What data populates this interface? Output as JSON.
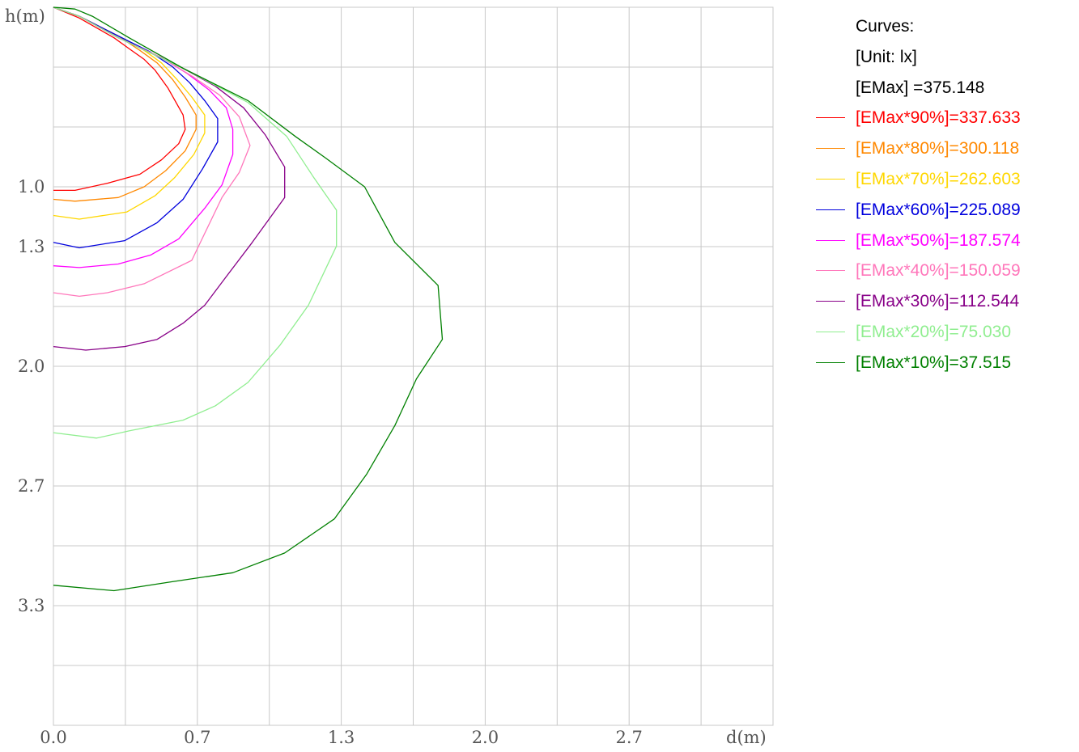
{
  "chart_data": {
    "type": "line",
    "xlabel": "d(m)",
    "ylabel": "h(m)",
    "xlim": [
      0,
      3.33
    ],
    "ylim": [
      0,
      4.0
    ],
    "y_inverted": true,
    "grid": true,
    "legend_position": "right",
    "x_ticks": [
      {
        "v": 0.0,
        "t": "0.0"
      },
      {
        "v": 0.666,
        "t": "0.7"
      },
      {
        "v": 1.332,
        "t": "1.3"
      },
      {
        "v": 1.998,
        "t": "2.0"
      },
      {
        "v": 2.664,
        "t": "2.7"
      }
    ],
    "y_ticks": [
      {
        "v": 1.0,
        "t": "1.0"
      },
      {
        "v": 1.333,
        "t": "1.3"
      },
      {
        "v": 2.0,
        "t": "2.0"
      },
      {
        "v": 2.667,
        "t": "2.7"
      },
      {
        "v": 3.333,
        "t": "3.3"
      }
    ],
    "legend_header": [
      "Curves:",
      "[Unit: lx]",
      "[EMax]   =375.148"
    ],
    "series": [
      {
        "name": "[EMax*90%]=337.633",
        "color": "#ff0000",
        "x": [
          0,
          0.04,
          0.12,
          0.28,
          0.35,
          0.42,
          0.47,
          0.53,
          0.6,
          0.61,
          0.58,
          0.5,
          0.4,
          0.25,
          0.1,
          0
        ],
        "y": [
          0,
          0.02,
          0.06,
          0.17,
          0.23,
          0.29,
          0.35,
          0.45,
          0.6,
          0.68,
          0.76,
          0.85,
          0.93,
          0.98,
          1.02,
          1.02
        ]
      },
      {
        "name": "[EMax*80%]=300.118",
        "color": "#ff8800",
        "x": [
          0,
          0.12,
          0.3,
          0.4,
          0.48,
          0.55,
          0.61,
          0.66,
          0.66,
          0.61,
          0.52,
          0.42,
          0.3,
          0.1,
          0
        ],
        "y": [
          0,
          0.05,
          0.16,
          0.24,
          0.31,
          0.4,
          0.5,
          0.6,
          0.68,
          0.8,
          0.91,
          1.0,
          1.06,
          1.08,
          1.07
        ]
      },
      {
        "name": "[EMax*70%]=262.603",
        "color": "#ffd700",
        "x": [
          0,
          0.12,
          0.3,
          0.42,
          0.5,
          0.57,
          0.64,
          0.7,
          0.7,
          0.65,
          0.56,
          0.47,
          0.34,
          0.12,
          0
        ],
        "y": [
          0,
          0.05,
          0.16,
          0.24,
          0.31,
          0.4,
          0.5,
          0.6,
          0.7,
          0.82,
          0.95,
          1.05,
          1.14,
          1.18,
          1.16
        ]
      },
      {
        "name": "[EMax*60%]=225.089",
        "color": "#0000dd",
        "x": [
          0,
          0.12,
          0.3,
          0.45,
          0.55,
          0.63,
          0.7,
          0.76,
          0.76,
          0.69,
          0.6,
          0.48,
          0.33,
          0.12,
          0
        ],
        "y": [
          0,
          0.05,
          0.16,
          0.25,
          0.33,
          0.42,
          0.52,
          0.62,
          0.75,
          0.9,
          1.07,
          1.2,
          1.3,
          1.34,
          1.31
        ]
      },
      {
        "name": "[EMax*50%]=187.574",
        "color": "#ff00ff",
        "x": [
          0,
          0.12,
          0.3,
          0.5,
          0.62,
          0.72,
          0.8,
          0.83,
          0.83,
          0.78,
          0.7,
          0.58,
          0.45,
          0.3,
          0.12,
          0
        ],
        "y": [
          0,
          0.05,
          0.17,
          0.28,
          0.37,
          0.46,
          0.56,
          0.68,
          0.82,
          0.99,
          1.12,
          1.29,
          1.38,
          1.43,
          1.45,
          1.44
        ]
      },
      {
        "name": "[EMax*40%]=150.059",
        "color": "#ff77bb",
        "x": [
          0,
          0.12,
          0.3,
          0.5,
          0.65,
          0.77,
          0.86,
          0.91,
          0.86,
          0.78,
          0.64,
          0.42,
          0.25,
          0.12,
          0
        ],
        "y": [
          0,
          0.05,
          0.17,
          0.28,
          0.39,
          0.49,
          0.61,
          0.77,
          0.92,
          1.06,
          1.41,
          1.54,
          1.59,
          1.61,
          1.59
        ]
      },
      {
        "name": "[EMax*30%]=112.544",
        "color": "#880088",
        "x": [
          0,
          0.12,
          0.3,
          0.6,
          0.75,
          0.88,
          0.98,
          1.07,
          1.07,
          0.92,
          0.8,
          0.7,
          0.6,
          0.48,
          0.33,
          0.15,
          0
        ],
        "y": [
          0,
          0.05,
          0.17,
          0.34,
          0.44,
          0.56,
          0.71,
          0.89,
          1.06,
          1.31,
          1.5,
          1.66,
          1.76,
          1.85,
          1.89,
          1.91,
          1.89
        ]
      },
      {
        "name": "[EMax*20%]=75.030",
        "color": "#90ee90",
        "x": [
          0,
          0.12,
          0.3,
          0.6,
          0.9,
          1.08,
          1.2,
          1.31,
          1.31,
          1.18,
          1.05,
          0.9,
          0.75,
          0.6,
          0.35,
          0.2,
          0
        ],
        "y": [
          0,
          0.05,
          0.17,
          0.34,
          0.53,
          0.72,
          0.94,
          1.13,
          1.33,
          1.66,
          1.88,
          2.09,
          2.22,
          2.3,
          2.36,
          2.4,
          2.37
        ]
      },
      {
        "name": "[EMax*10%]=37.515",
        "color": "#008000",
        "x": [
          0,
          0.1,
          0.18,
          0.35,
          0.6,
          0.9,
          1.12,
          1.26,
          1.44,
          1.58,
          1.78,
          1.8,
          1.68,
          1.58,
          1.45,
          1.3,
          1.07,
          0.83,
          0.55,
          0.28,
          0
        ],
        "y": [
          0,
          0.01,
          0.05,
          0.17,
          0.34,
          0.52,
          0.72,
          0.84,
          1.0,
          1.31,
          1.55,
          1.85,
          2.07,
          2.33,
          2.6,
          2.85,
          3.04,
          3.15,
          3.2,
          3.25,
          3.22
        ]
      }
    ]
  }
}
